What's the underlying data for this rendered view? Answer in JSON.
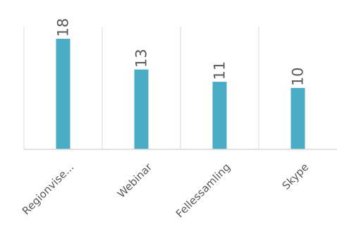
{
  "chart_data": {
    "type": "bar",
    "categories": [
      "Regionvise...",
      "Webinar",
      "Fellessamling",
      "Skype"
    ],
    "values": [
      18,
      13,
      11,
      10
    ],
    "title": "",
    "xlabel": "",
    "ylabel": "",
    "ylim": [
      0,
      20
    ],
    "grid": "vertical category separators",
    "legend": "none",
    "data_labels": [
      "18",
      "13",
      "11",
      "10"
    ],
    "bar_color": "#4bacc6"
  }
}
